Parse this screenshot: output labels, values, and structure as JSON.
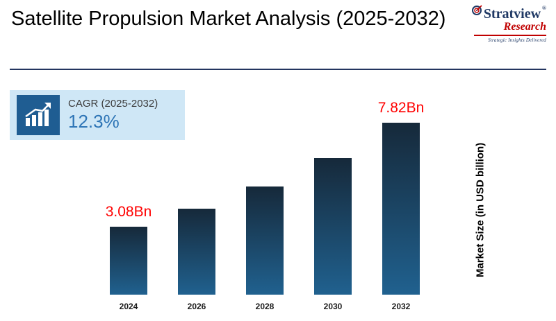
{
  "header": {
    "title": "Satellite Propulsion Market Analysis (2025-2032)",
    "logo": {
      "name_line1": "Stratview",
      "registered": "®",
      "name_line2": "Research",
      "tagline": "Strategic Insights Delivered",
      "primary_color": "#1f3864",
      "accent_color": "#c00000"
    }
  },
  "cagr_box": {
    "label": "CAGR (2025-2032)",
    "value": "12.3%",
    "background_color": "#cfe7f6",
    "icon": "bar-chart-growth-icon",
    "icon_background": "#1f5d92",
    "value_color": "#2e75b6"
  },
  "chart_data": {
    "type": "bar",
    "categories": [
      "2024",
      "2026",
      "2028",
      "2030",
      "2032"
    ],
    "values": [
      3.08,
      3.9,
      4.9,
      6.2,
      7.82
    ],
    "bar_labels": [
      "3.08Bn",
      "",
      "",
      "",
      "7.82Bn"
    ],
    "title": "",
    "xlabel": "",
    "ylabel": "Market Size (in USD billion)",
    "ylim": [
      0,
      8.5
    ],
    "grid": false,
    "legend": "none",
    "bar_color_top": "#16293a",
    "bar_color_bottom": "#20618f",
    "data_label_color": "#ff0000"
  }
}
